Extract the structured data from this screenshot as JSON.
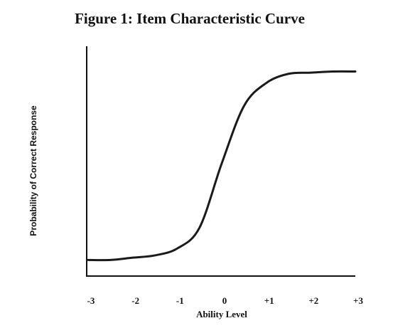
{
  "chart_data": {
    "type": "line",
    "title": "Figure 1:  Item Characteristic Curve",
    "xlabel": "Ability Level",
    "ylabel": "Probability of Correct Response",
    "x": [
      -3,
      -2.5,
      -2,
      -1.5,
      -1,
      -0.5,
      0,
      0.5,
      1,
      1.5,
      2,
      2.5,
      3
    ],
    "series": [
      {
        "color": "#1a1a1a",
        "values": [
          0.07,
          0.07,
          0.08,
          0.09,
          0.12,
          0.21,
          0.49,
          0.74,
          0.84,
          0.88,
          0.885,
          0.89,
          0.89
        ]
      }
    ],
    "xlim": [
      -3,
      3
    ],
    "ylim": [
      0,
      1
    ],
    "xticks": [
      -3,
      -2,
      -1,
      0,
      {
        "value": 1,
        "label": "+1"
      },
      {
        "value": 2,
        "label": "+2"
      },
      {
        "value": 3,
        "label": "+3"
      }
    ],
    "grid": false
  }
}
